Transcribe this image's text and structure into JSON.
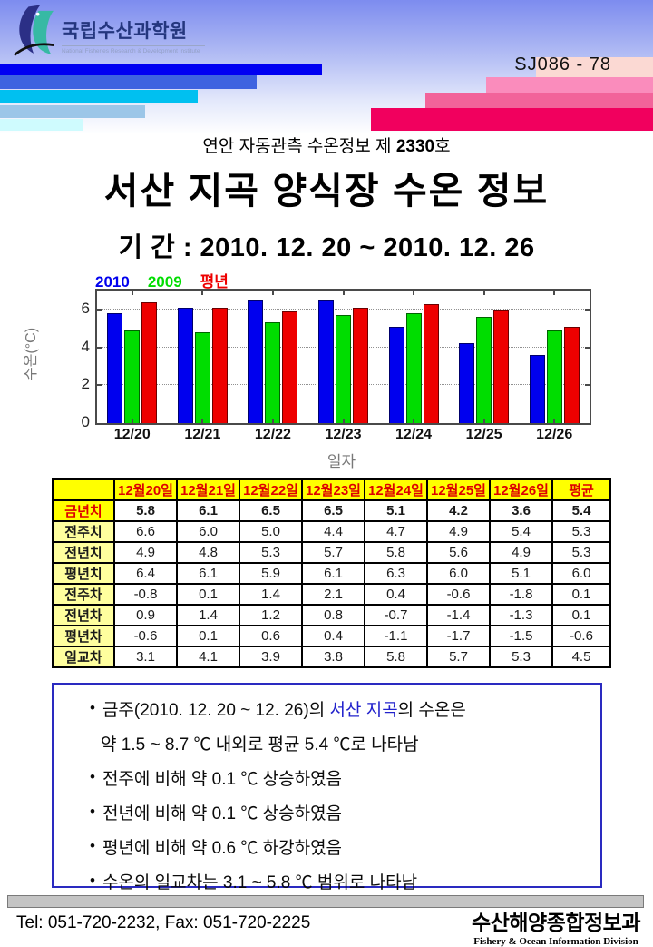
{
  "header": {
    "logo_title": "국립수산과학원",
    "logo_subtitle": "National Fisheries Research & Development Institute",
    "doc_code": "SJ086 - 78",
    "deco_left_colors": [
      "#0000f2",
      "#3e63e0",
      "#00c0f0",
      "#9cc6e8",
      "#cffbfe"
    ],
    "deco_right_colors": [
      "#fbd9d3",
      "#fa8cbc",
      "#f2639a",
      "#f1005e"
    ]
  },
  "bulletin": {
    "series_pre": "연안 자동관측 수온정보 제 ",
    "series_no": "2330",
    "series_suf": "호",
    "title": "서산 지곡 양식장 수온 정보",
    "period": "기 간 : 2010. 12. 20 ~ 2010. 12. 26"
  },
  "chart_data": {
    "type": "bar",
    "categories": [
      "12/20",
      "12/21",
      "12/22",
      "12/23",
      "12/24",
      "12/25",
      "12/26"
    ],
    "series": [
      {
        "name": "2010",
        "color": "#0000ee",
        "values": [
          5.8,
          6.1,
          6.5,
          6.5,
          5.1,
          4.2,
          3.6
        ]
      },
      {
        "name": "2009",
        "color": "#00dd00",
        "values": [
          4.9,
          4.8,
          5.3,
          5.7,
          5.8,
          5.6,
          4.9
        ]
      },
      {
        "name": "평년",
        "color": "#ee0000",
        "values": [
          6.4,
          6.1,
          5.9,
          6.1,
          6.3,
          6.0,
          5.1
        ]
      }
    ],
    "xlabel": "일자",
    "ylabel": "수온(°C)",
    "ylim": [
      0,
      7
    ],
    "yticks": [
      0,
      2,
      4,
      6
    ],
    "grid": true,
    "legend_position": "top-left"
  },
  "table": {
    "columns": [
      "",
      "12월20일",
      "12월21일",
      "12월22일",
      "12월23일",
      "12월24일",
      "12월25일",
      "12월26일",
      "평균"
    ],
    "rows": [
      {
        "label": "금년치",
        "values": [
          "5.8",
          "6.1",
          "6.5",
          "6.5",
          "5.1",
          "4.2",
          "3.6",
          "5.4"
        ],
        "emphasis": true
      },
      {
        "label": "전주치",
        "values": [
          "6.6",
          "6.0",
          "5.0",
          "4.4",
          "4.7",
          "4.9",
          "5.4",
          "5.3"
        ],
        "emphasis": false
      },
      {
        "label": "전년치",
        "values": [
          "4.9",
          "4.8",
          "5.3",
          "5.7",
          "5.8",
          "5.6",
          "4.9",
          "5.3"
        ],
        "emphasis": false
      },
      {
        "label": "평년치",
        "values": [
          "6.4",
          "6.1",
          "5.9",
          "6.1",
          "6.3",
          "6.0",
          "5.1",
          "6.0"
        ],
        "emphasis": false
      },
      {
        "label": "전주차",
        "values": [
          "-0.8",
          "0.1",
          "1.4",
          "2.1",
          "0.4",
          "-0.6",
          "-1.8",
          "0.1"
        ],
        "emphasis": false
      },
      {
        "label": "전년차",
        "values": [
          "0.9",
          "1.4",
          "1.2",
          "0.8",
          "-0.7",
          "-1.4",
          "-1.3",
          "0.1"
        ],
        "emphasis": false
      },
      {
        "label": "평년차",
        "values": [
          "-0.6",
          "0.1",
          "0.6",
          "0.4",
          "-1.1",
          "-1.7",
          "-1.5",
          "-0.6"
        ],
        "emphasis": false
      },
      {
        "label": "일교차",
        "values": [
          "3.1",
          "4.1",
          "3.9",
          "3.8",
          "5.8",
          "5.7",
          "5.3",
          "4.5"
        ],
        "emphasis": false
      }
    ]
  },
  "summary": {
    "bullet1_pre": "금주(2010. 12. 20 ~ 12. 26)의 ",
    "bullet1_highlight": "서산 지곡",
    "bullet1_post": "의 수온은",
    "bullet1_line2": "약 1.5 ~ 8.7  ℃ 내외로 평균 5.4 ℃로 나타남",
    "bullets": [
      "전주에 비해 약 0.1 ℃ 상승하였음",
      "전년에 비해 약 0.1 ℃ 상승하였음",
      "평년에 비해 약 0.6 ℃ 하강하였음",
      "수온의 일교차는 3.1 ~ 5.8 ℃ 범위로 나타남"
    ],
    "highlight_color": "#2222cc"
  },
  "footer": {
    "contact": "Tel: 051-720-2232,  Fax: 051-720-2225",
    "division_kr": "수산해양종합정보과",
    "division_en": "Fishery & Ocean Information Division"
  }
}
